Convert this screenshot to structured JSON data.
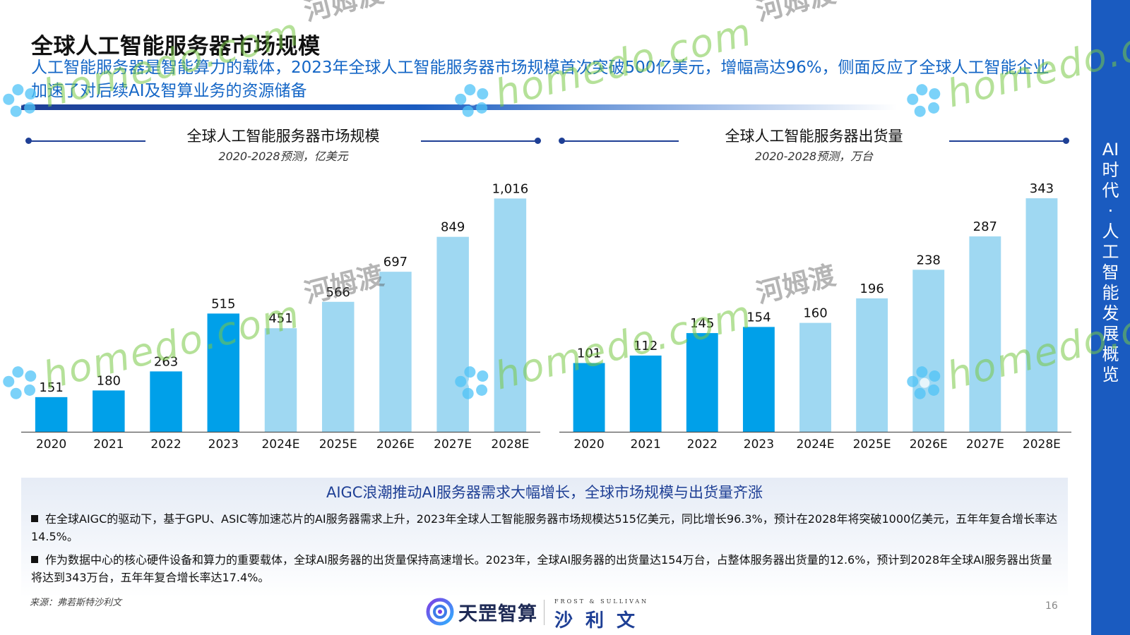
{
  "page": {
    "title": "全球人工智能服务器市场规模",
    "subtitle": "人工智能服务器是智能算力的载体，2023年全球人工智能服务器市场规模首次突破500亿美元，增幅高达96%，侧面反应了全球人工智能企业加速了对后续AI及智算业务的资源储备",
    "side_label": [
      "AI",
      "时",
      "代",
      "·",
      "人",
      "工",
      "智",
      "能",
      "发",
      "展",
      "概",
      "览"
    ],
    "source": "来源：弗若斯特沙利文",
    "page_number": "16"
  },
  "chart_data": [
    {
      "type": "bar",
      "title": "全球人工智能服务器市场规模",
      "subtitle": "2020-2028预测，亿美元",
      "categories": [
        "2020",
        "2021",
        "2022",
        "2023",
        "2024E",
        "2025E",
        "2026E",
        "2027E",
        "2028E"
      ],
      "values": [
        151,
        180,
        263,
        515,
        451,
        566,
        697,
        849,
        1016
      ],
      "value_labels": [
        "151",
        "180",
        "263",
        "515",
        "451",
        "566",
        "697",
        "849",
        "1,016"
      ],
      "ylim": [
        0,
        1100
      ],
      "actual_count": 4,
      "colors": {
        "actual": "#00a0e9",
        "forecast": "#9fd8f2"
      },
      "grid": false
    },
    {
      "type": "bar",
      "title": "全球人工智能服务器出货量",
      "subtitle": "2020-2028预测，万台",
      "categories": [
        "2020",
        "2021",
        "2022",
        "2023",
        "2024E",
        "2025E",
        "2026E",
        "2027E",
        "2028E"
      ],
      "values": [
        101,
        112,
        145,
        154,
        160,
        196,
        238,
        287,
        343
      ],
      "value_labels": [
        "101",
        "112",
        "145",
        "154",
        "160",
        "196",
        "238",
        "287",
        "343"
      ],
      "ylim": [
        0,
        371
      ],
      "actual_count": 4,
      "colors": {
        "actual": "#00a0e9",
        "forecast": "#9fd8f2"
      },
      "grid": false
    }
  ],
  "summary": {
    "title": "AIGC浪潮推动AI服务器需求大幅增长，全球市场规模与出货量齐涨",
    "bullets": [
      "在全球AIGC的驱动下，基于GPU、ASIC等加速芯片的AI服务器需求上升，2023年全球人工智能服务器市场规模达515亿美元，同比增长96.3%，预计在2028年将突破1000亿美元，五年年复合增长率达14.5%。",
      "作为数据中心的核心硬件设备和算力的重要载体，全球AI服务器的出货量保持高速增长。2023年，全球AI服务器的出货量达154万台，占整体服务器出货量的12.6%，预计到2028年全球AI服务器出货量将达到343万台，五年年复合增长率达17.4%。"
    ]
  },
  "logos": {
    "tianzhi": "天罡智算",
    "frost_small": "FROST & SULLIVAN",
    "frost_big": "沙利文"
  },
  "watermark": {
    "en": "homedo.com",
    "cn": "河姆渡"
  },
  "icons": {
    "tianzhi_logo": "swirl-logo-icon",
    "watermark_flower": "flower-icon"
  }
}
